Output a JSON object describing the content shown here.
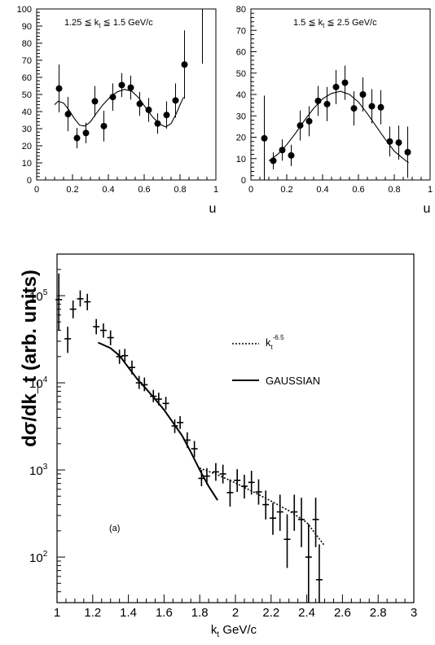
{
  "chart_data": [
    {
      "type": "scatter",
      "title": "",
      "annotation": "1.25 ≦ kt ≦ 1.5 GeV/c",
      "annotation_parts": {
        "pre": "1.25 ≦ k",
        "sub": "t",
        "post": " ≦ 1.5 GeV/c"
      },
      "xlabel": "u",
      "ylabel": "",
      "xlim": [
        0,
        1
      ],
      "ylim": [
        0,
        100
      ],
      "x_ticks": [
        "0",
        "0.2",
        "0.4",
        "0.6",
        "0.8",
        "1"
      ],
      "y_ticks": [
        "0",
        "10",
        "20",
        "30",
        "40",
        "50",
        "60",
        "70",
        "80",
        "90",
        "100"
      ],
      "grid": false,
      "series": [
        {
          "points": [
            {
              "x": 0.125,
              "y": 53.5,
              "err": 14
            },
            {
              "x": 0.175,
              "y": 38.5,
              "err": 10
            },
            {
              "x": 0.225,
              "y": 24.5,
              "err": 6
            },
            {
              "x": 0.275,
              "y": 27.5,
              "err": 6
            },
            {
              "x": 0.325,
              "y": 46,
              "err": 9
            },
            {
              "x": 0.375,
              "y": 31.5,
              "err": 9
            },
            {
              "x": 0.425,
              "y": 48.5,
              "err": 8
            },
            {
              "x": 0.475,
              "y": 55.5,
              "err": 7
            },
            {
              "x": 0.525,
              "y": 54,
              "err": 7
            },
            {
              "x": 0.575,
              "y": 44.5,
              "err": 7
            },
            {
              "x": 0.625,
              "y": 41,
              "err": 7
            },
            {
              "x": 0.675,
              "y": 33,
              "err": 6
            },
            {
              "x": 0.725,
              "y": 38,
              "err": 8
            },
            {
              "x": 0.775,
              "y": 46.5,
              "err": 10
            },
            {
              "x": 0.825,
              "y": 67.5,
              "err": 20
            },
            {
              "x": 0.925,
              "y": 98,
              "err": 30,
              "no_marker": true
            }
          ]
        },
        {
          "type": "line",
          "curve": [
            [
              0.1,
              44
            ],
            [
              0.12,
              46
            ],
            [
              0.15,
              45
            ],
            [
              0.18,
              41
            ],
            [
              0.21,
              36
            ],
            [
              0.24,
              32
            ],
            [
              0.27,
              31.5
            ],
            [
              0.3,
              34
            ],
            [
              0.33,
              38.5
            ],
            [
              0.37,
              44
            ],
            [
              0.41,
              48.5
            ],
            [
              0.45,
              51.5
            ],
            [
              0.49,
              53
            ],
            [
              0.53,
              52
            ],
            [
              0.57,
              48
            ],
            [
              0.61,
              42
            ],
            [
              0.65,
              36.5
            ],
            [
              0.69,
              32.5
            ],
            [
              0.72,
              31
            ],
            [
              0.75,
              33
            ],
            [
              0.78,
              39
            ],
            [
              0.8,
              44
            ],
            [
              0.82,
              48.5
            ]
          ]
        }
      ]
    },
    {
      "type": "scatter",
      "title": "",
      "annotation": "1.5 ≦ kt ≦ 2.5 GeV/c",
      "annotation_parts": {
        "pre": "1.5 ≦ k",
        "sub": "t",
        "post": " ≦ 2.5 GeV/c"
      },
      "xlabel": "u",
      "ylabel": "",
      "xlim": [
        0,
        1
      ],
      "ylim": [
        0,
        80
      ],
      "x_ticks": [
        "0",
        "0.2",
        "0.4",
        "0.6",
        "0.8",
        "1"
      ],
      "y_ticks": [
        "0",
        "10",
        "20",
        "30",
        "40",
        "50",
        "60",
        "70",
        "80"
      ],
      "grid": false,
      "series": [
        {
          "points": [
            {
              "x": 0.075,
              "y": 19.5,
              "err": 20
            },
            {
              "x": 0.125,
              "y": 9,
              "err": 4
            },
            {
              "x": 0.175,
              "y": 14,
              "err": 5
            },
            {
              "x": 0.225,
              "y": 11.5,
              "err": 5
            },
            {
              "x": 0.275,
              "y": 25.5,
              "err": 7
            },
            {
              "x": 0.325,
              "y": 27.5,
              "err": 7
            },
            {
              "x": 0.375,
              "y": 37,
              "err": 7
            },
            {
              "x": 0.425,
              "y": 35.5,
              "err": 8
            },
            {
              "x": 0.475,
              "y": 43.5,
              "err": 8
            },
            {
              "x": 0.525,
              "y": 45.5,
              "err": 8
            },
            {
              "x": 0.575,
              "y": 33.5,
              "err": 8
            },
            {
              "x": 0.625,
              "y": 40,
              "err": 8
            },
            {
              "x": 0.675,
              "y": 34.5,
              "err": 8
            },
            {
              "x": 0.725,
              "y": 34,
              "err": 8
            },
            {
              "x": 0.775,
              "y": 18,
              "err": 7
            },
            {
              "x": 0.825,
              "y": 17.5,
              "err": 8
            },
            {
              "x": 0.875,
              "y": 13,
              "err": 12
            }
          ]
        },
        {
          "type": "line",
          "curve": [
            [
              0.1,
              9
            ],
            [
              0.15,
              12
            ],
            [
              0.2,
              16.5
            ],
            [
              0.25,
              22
            ],
            [
              0.3,
              28
            ],
            [
              0.35,
              33.5
            ],
            [
              0.4,
              38
            ],
            [
              0.45,
              40.5
            ],
            [
              0.5,
              41.5
            ],
            [
              0.55,
              40
            ],
            [
              0.6,
              36.5
            ],
            [
              0.65,
              31
            ],
            [
              0.7,
              25
            ],
            [
              0.75,
              19
            ],
            [
              0.8,
              13.5
            ],
            [
              0.85,
              10
            ],
            [
              0.88,
              8
            ]
          ]
        }
      ]
    },
    {
      "type": "scatter",
      "title": "",
      "annotation": "(a)",
      "xlabel": "kt GeV/c",
      "xlabel_parts": {
        "pre": "k",
        "sub": "t",
        "post": " GeV/c"
      },
      "ylabel": "dσ/dk_t (arb. units)",
      "xlim": [
        1,
        3
      ],
      "ylim": [
        30,
        300000
      ],
      "yscale": "log",
      "x_ticks": [
        "1",
        "1.2",
        "1.4",
        "1.6",
        "1.8",
        "2",
        "2.2",
        "2.4",
        "2.6",
        "2.8",
        "3"
      ],
      "y_ticks": [
        {
          "label": "10",
          "exp": "2",
          "value": 100
        },
        {
          "label": "10",
          "exp": "3",
          "value": 1000
        },
        {
          "label": "10",
          "exp": "4",
          "value": 10000
        },
        {
          "label": "10",
          "exp": "5",
          "value": 100000
        }
      ],
      "grid": false,
      "legend": {
        "position": "top-right",
        "entries": [
          {
            "style": "dotted",
            "label_pre": "k",
            "label_sub": "t",
            "label_sup": "-6.5"
          },
          {
            "style": "solid",
            "label": "GAUSSIAN"
          }
        ]
      },
      "series": [
        {
          "name": "data",
          "points": [
            {
              "x": 1.01,
              "y": 90000,
              "lo": 40000,
              "hi": 180000
            },
            {
              "x": 1.06,
              "y": 32000,
              "lo": 22000,
              "hi": 44000
            },
            {
              "x": 1.09,
              "y": 70000,
              "lo": 55000,
              "hi": 88000
            },
            {
              "x": 1.13,
              "y": 92000,
              "lo": 75000,
              "hi": 115000
            },
            {
              "x": 1.17,
              "y": 85000,
              "lo": 68000,
              "hi": 105000
            },
            {
              "x": 1.22,
              "y": 44000,
              "lo": 36000,
              "hi": 54000
            },
            {
              "x": 1.26,
              "y": 40000,
              "lo": 33000,
              "hi": 48000
            },
            {
              "x": 1.3,
              "y": 33000,
              "lo": 27000,
              "hi": 40000
            },
            {
              "x": 1.35,
              "y": 20000,
              "lo": 16500,
              "hi": 24000
            },
            {
              "x": 1.38,
              "y": 20500,
              "lo": 17000,
              "hi": 24500
            },
            {
              "x": 1.42,
              "y": 15000,
              "lo": 12500,
              "hi": 18000
            },
            {
              "x": 1.46,
              "y": 10000,
              "lo": 8500,
              "hi": 12000
            },
            {
              "x": 1.49,
              "y": 9500,
              "lo": 8000,
              "hi": 11500
            },
            {
              "x": 1.54,
              "y": 7000,
              "lo": 6000,
              "hi": 8300
            },
            {
              "x": 1.57,
              "y": 6500,
              "lo": 5500,
              "hi": 7700
            },
            {
              "x": 1.61,
              "y": 5800,
              "lo": 4900,
              "hi": 6900
            },
            {
              "x": 1.66,
              "y": 3200,
              "lo": 2650,
              "hi": 3800
            },
            {
              "x": 1.69,
              "y": 3500,
              "lo": 2950,
              "hi": 4150
            },
            {
              "x": 1.73,
              "y": 2200,
              "lo": 1800,
              "hi": 2700
            },
            {
              "x": 1.77,
              "y": 1750,
              "lo": 1400,
              "hi": 2150
            },
            {
              "x": 1.81,
              "y": 800,
              "lo": 650,
              "hi": 1000
            },
            {
              "x": 1.84,
              "y": 850,
              "lo": 680,
              "hi": 1050
            },
            {
              "x": 1.89,
              "y": 950,
              "lo": 750,
              "hi": 1200
            },
            {
              "x": 1.93,
              "y": 900,
              "lo": 700,
              "hi": 1150
            },
            {
              "x": 1.97,
              "y": 550,
              "lo": 380,
              "hi": 780
            },
            {
              "x": 2.01,
              "y": 760,
              "lo": 560,
              "hi": 1020
            },
            {
              "x": 2.05,
              "y": 650,
              "lo": 470,
              "hi": 880
            },
            {
              "x": 2.09,
              "y": 720,
              "lo": 520,
              "hi": 980
            },
            {
              "x": 2.13,
              "y": 560,
              "lo": 400,
              "hi": 780
            },
            {
              "x": 2.17,
              "y": 400,
              "lo": 270,
              "hi": 580
            },
            {
              "x": 2.21,
              "y": 280,
              "lo": 180,
              "hi": 420
            },
            {
              "x": 2.25,
              "y": 330,
              "lo": 200,
              "hi": 520
            },
            {
              "x": 2.29,
              "y": 160,
              "lo": 75,
              "hi": 310
            },
            {
              "x": 2.33,
              "y": 330,
              "lo": 200,
              "hi": 520
            },
            {
              "x": 2.37,
              "y": 270,
              "lo": 130,
              "hi": 480
            },
            {
              "x": 2.41,
              "y": 100,
              "lo": 30,
              "hi": 240
            },
            {
              "x": 2.45,
              "y": 270,
              "lo": 130,
              "hi": 480
            },
            {
              "x": 2.47,
              "y": 55,
              "lo": 30,
              "hi": 140
            }
          ]
        },
        {
          "name": "Gaussian fit",
          "type": "line",
          "style": "solid",
          "curve": [
            [
              1.23,
              29000
            ],
            [
              1.3,
              25000
            ],
            [
              1.35,
              20500
            ],
            [
              1.4,
              15000
            ],
            [
              1.45,
              11000
            ],
            [
              1.5,
              8500
            ],
            [
              1.55,
              6500
            ],
            [
              1.6,
              4900
            ],
            [
              1.65,
              3500
            ],
            [
              1.7,
              2500
            ],
            [
              1.75,
              1600
            ],
            [
              1.8,
              1000
            ],
            [
              1.85,
              650
            ],
            [
              1.9,
              450
            ]
          ]
        },
        {
          "name": "power law kt^-6.5",
          "type": "line",
          "style": "dotted",
          "curve": [
            [
              1.8,
              1050
            ],
            [
              1.9,
              880
            ],
            [
              2.0,
              710
            ],
            [
              2.1,
              560
            ],
            [
              2.2,
              440
            ],
            [
              2.3,
              340
            ],
            [
              2.4,
              250
            ],
            [
              2.5,
              135
            ]
          ]
        }
      ]
    }
  ]
}
